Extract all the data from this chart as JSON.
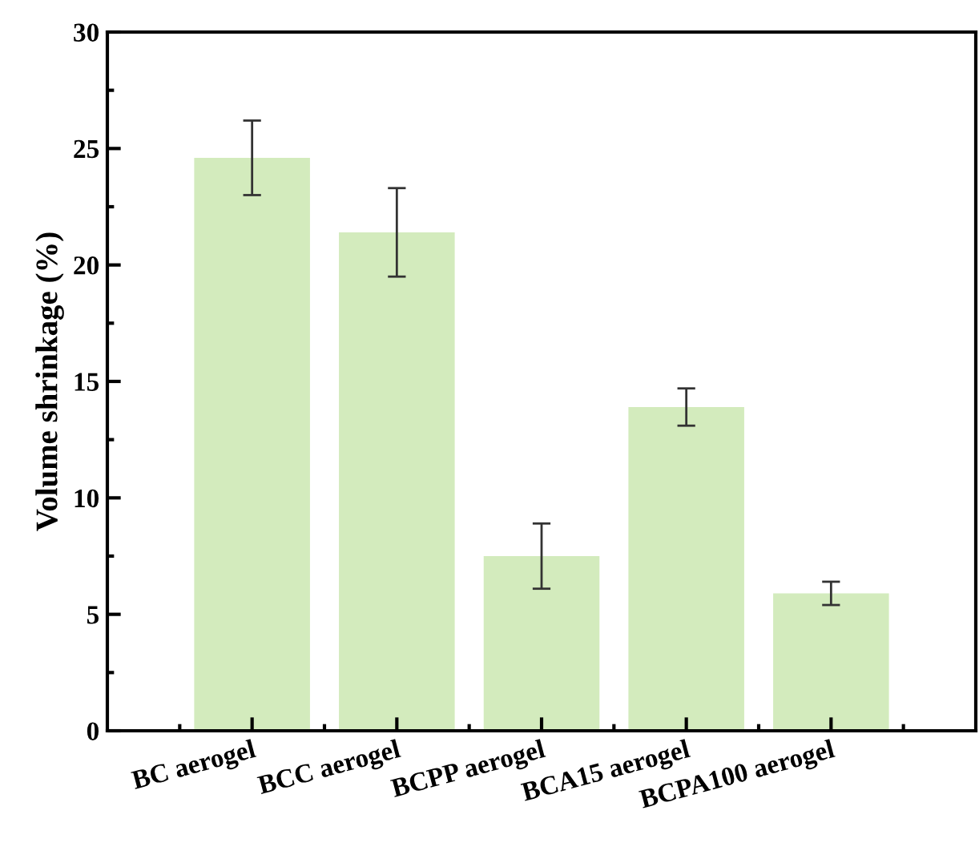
{
  "chart_data": {
    "type": "bar",
    "ylabel": "Volume shrinkage (%)",
    "categories": [
      "BC aerogel",
      "BCC aerogel",
      "BCPP aerogel",
      "BCA15 aerogel",
      "BCPA100 aerogel"
    ],
    "values": [
      24.6,
      21.4,
      7.5,
      13.9,
      5.9
    ],
    "errors": [
      1.6,
      1.9,
      1.4,
      0.8,
      0.5
    ],
    "color": "#d3ebbd",
    "ylim": [
      0,
      30
    ],
    "yticks": [
      0,
      5,
      10,
      15,
      20,
      25,
      30
    ],
    "grid": false
  }
}
